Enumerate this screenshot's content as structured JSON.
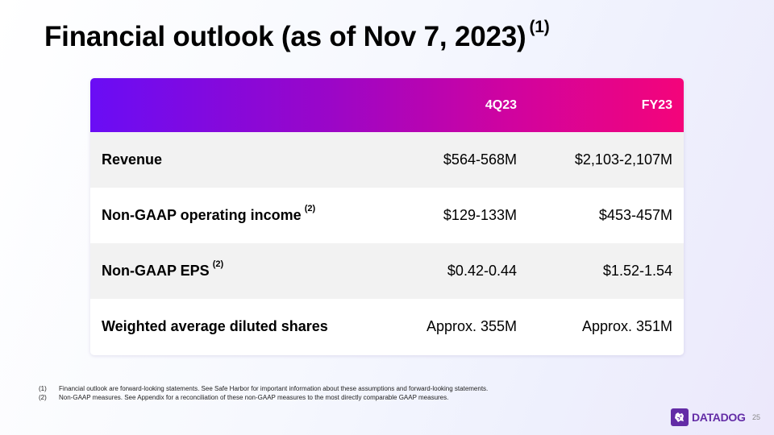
{
  "slide": {
    "title": "Financial outlook (as of Nov 7, 2023)",
    "title_footnote": "(1)",
    "page_number": "25"
  },
  "table": {
    "columns": [
      "4Q23",
      "FY23"
    ],
    "rows": [
      {
        "label": "Revenue",
        "footnote": "",
        "q4": "$564-568M",
        "fy": "$2,103-2,107M"
      },
      {
        "label": "Non-GAAP operating income",
        "footnote": "(2)",
        "q4": "$129-133M",
        "fy": "$453-457M"
      },
      {
        "label": "Non-GAAP EPS",
        "footnote": "(2)",
        "q4": "$0.42-0.44",
        "fy": "$1.52-1.54"
      },
      {
        "label": "Weighted average diluted shares",
        "footnote": "",
        "q4": "Approx. 355M",
        "fy": "Approx. 351M"
      }
    ]
  },
  "footnotes": [
    {
      "num": "(1)",
      "text": "Financial outlook are forward-looking statements.  See Safe Harbor for important information about these assumptions and forward-looking statements."
    },
    {
      "num": "(2)",
      "text": "Non-GAAP measures. See Appendix for a reconciliation of these non-GAAP measures to the most directly comparable GAAP measures."
    }
  ],
  "logo": {
    "text": "DATADOG",
    "icon": "datadog-dog-icon",
    "color": "#632ca6"
  },
  "colors": {
    "header_gradient_start": "#6a0df5",
    "header_gradient_end": "#f4047a",
    "shaded_row": "#f2f2f2"
  }
}
